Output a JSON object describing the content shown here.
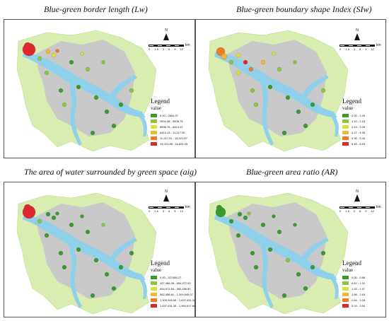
{
  "panels": [
    {
      "title": "Blue-green border length (Lw)",
      "north_label": "N",
      "scale_ticks": [
        "0",
        "1.5",
        "3",
        "6",
        "9",
        "12"
      ],
      "scale_unit": "km",
      "legend_title": "Legend",
      "legend_subtitle": "value",
      "legend": [
        {
          "label": "0.00 - 2804.37",
          "color": "#3a9b2c"
        },
        {
          "label": "2804.38 - 5608.75",
          "color": "#8cc63f"
        },
        {
          "label": "5608.76 - 8413.12",
          "color": "#dde03a"
        },
        {
          "label": "8413.13 - 11,217.50",
          "color": "#f4b731"
        },
        {
          "label": "11,217.51 - 14,021.87",
          "color": "#ee7c27"
        },
        {
          "label": "14,021.88 - 16,826.25",
          "color": "#e0262a"
        }
      ]
    },
    {
      "title": "Blue-green boundary shape Index (SIw)",
      "north_label": "N",
      "scale_ticks": [
        "0",
        "1.5",
        "3",
        "6",
        "9",
        "12"
      ],
      "scale_unit": "km",
      "legend_title": "Legend",
      "legend_subtitle": "value",
      "legend": [
        {
          "label": "0.00 - 1.09",
          "color": "#3a9b2c"
        },
        {
          "label": "1.10 - 2.18",
          "color": "#8cc63f"
        },
        {
          "label": "2.19 - 3.26",
          "color": "#dde03a"
        },
        {
          "label": "3.27 - 4.35",
          "color": "#f4b731"
        },
        {
          "label": "4.36 - 5.44",
          "color": "#ee7c27"
        },
        {
          "label": "5.45 - 6.53",
          "color": "#e0262a"
        }
      ]
    },
    {
      "title": "The area of water surrounded by green space (aig)",
      "north_label": "N",
      "scale_ticks": [
        "0",
        "1.5",
        "3",
        "6",
        "9",
        "12"
      ],
      "scale_unit": "km",
      "legend_title": "Legend",
      "legend_subtitle": "value",
      "legend": [
        {
          "label": "0.00 - 327486.27",
          "color": "#3a9b2c"
        },
        {
          "label": "327,486.28 - 654,972.53",
          "color": "#8cc63f"
        },
        {
          "label": "654,972.54 - 982,458.80",
          "color": "#dde03a"
        },
        {
          "label": "982,458.81 - 1,309,945.07",
          "color": "#f4b731"
        },
        {
          "label": "1,309,945.08 - 1,637,431.34",
          "color": "#ee7c27"
        },
        {
          "label": "1,637,431.35 - 1,964,917.60",
          "color": "#e0262a"
        }
      ]
    },
    {
      "title": "Blue-green area ratio (AR)",
      "north_label": "N",
      "scale_ticks": [
        "0",
        "1.5",
        "3",
        "6",
        "9",
        "12"
      ],
      "scale_unit": "km",
      "legend_title": "Legend",
      "legend_subtitle": "value",
      "legend": [
        {
          "label": "0.00 - 0.66",
          "color": "#3a9b2c"
        },
        {
          "label": "0.67 - 1.31",
          "color": "#8cc63f"
        },
        {
          "label": "1.32 - 1.97",
          "color": "#dde03a"
        },
        {
          "label": "1.98 - 2.63",
          "color": "#f4b731"
        },
        {
          "label": "2.64 - 3.28",
          "color": "#ee7c27"
        },
        {
          "label": "3.29 - 3.94",
          "color": "#e0262a"
        }
      ]
    }
  ],
  "map_colors": {
    "urban": "#c9c9c9",
    "water": "#8fd1ea",
    "greenland": "#d9edb0"
  }
}
